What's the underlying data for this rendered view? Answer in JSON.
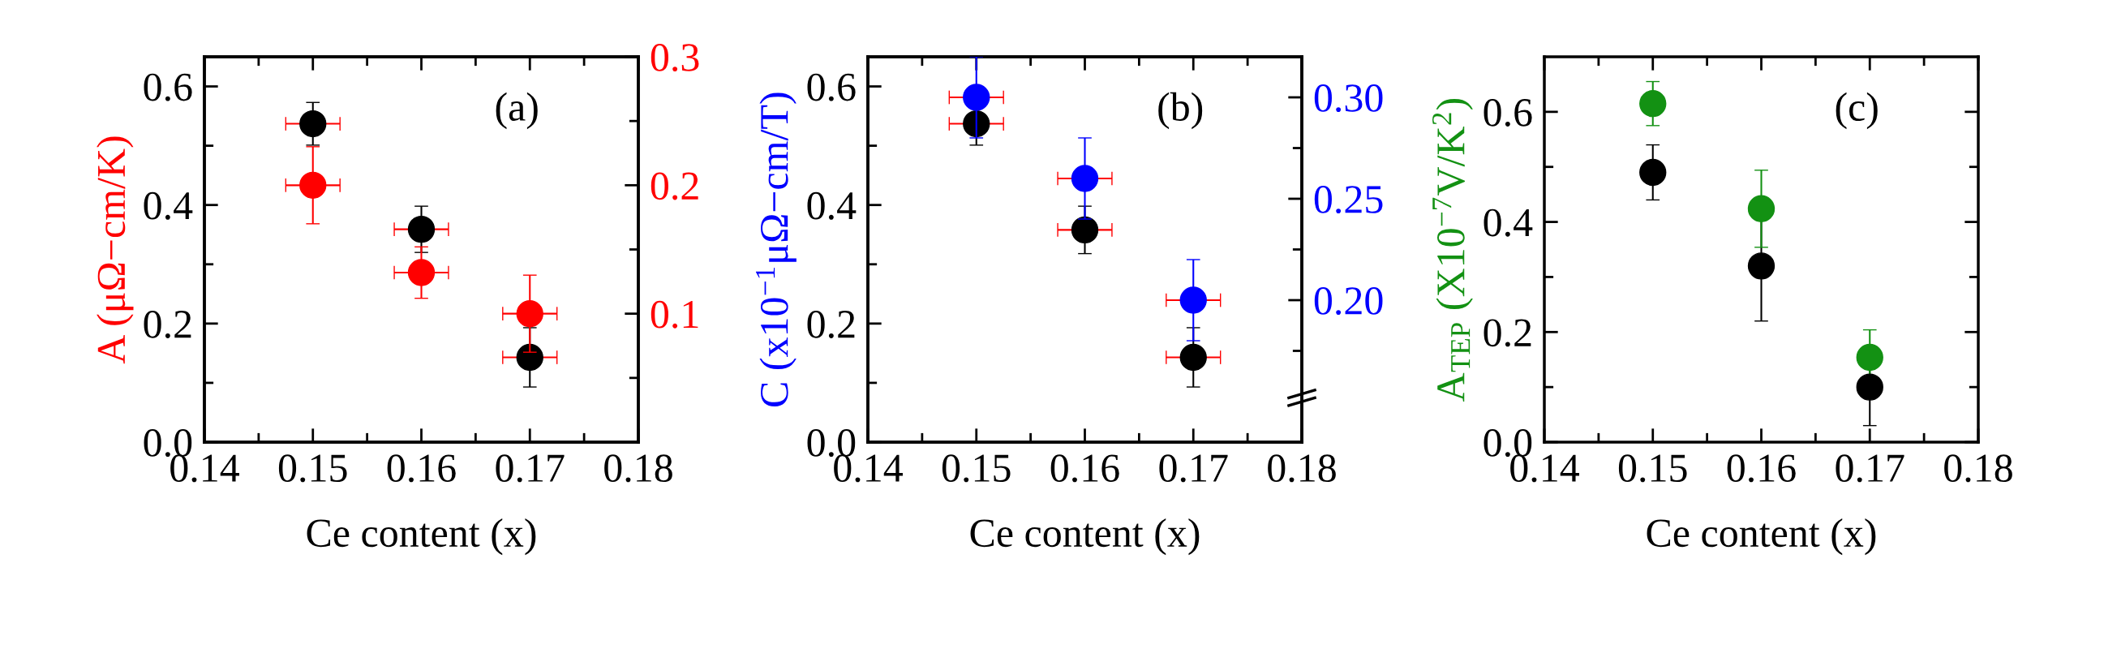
{
  "chart_data": [
    {
      "type": "scatter",
      "x": [
        0.15,
        0.16,
        0.17
      ],
      "marker": "circle",
      "xlabel": "Ce content (x)",
      "ylabel": "A (μΩ−cm/K)",
      "annotations": [
        "(a)"
      ],
      "xlim": [
        0.14,
        0.18
      ],
      "xticks": [
        0.14,
        {
          "value": 0.145,
          "label": null
        },
        0.15,
        {
          "value": 0.155,
          "label": null
        },
        0.16,
        {
          "value": 0.165,
          "label": null
        },
        0.17,
        {
          "value": 0.175,
          "label": null
        },
        0.18
      ],
      "ylim": [
        0,
        0.65
      ],
      "yticks": [
        {
          "value": 0,
          "label": "0.0"
        },
        {
          "value": 0.1,
          "label": null
        },
        0.2,
        {
          "value": 0.3,
          "label": null
        },
        0.4,
        {
          "value": 0.5,
          "label": null
        },
        0.6
      ],
      "y2lim": [
        0,
        0.3
      ],
      "y2ticks": [
        {
          "value": 0.05,
          "label": null
        },
        0.1,
        {
          "value": 0.15,
          "label": null
        },
        0.2,
        {
          "value": 0.25,
          "label": null
        },
        0.3
      ],
      "series": [
        {
          "color": "#000000",
          "values": [
            0.537,
            0.359,
            0.143
          ],
          "errors": [
            0.036,
            0.039,
            0.05
          ],
          "xerrors": [
            0.0025,
            0.0025,
            0.0025
          ]
        },
        {
          "color": "#ff0000",
          "axis": "y2",
          "values": [
            0.2,
            0.132,
            0.1
          ],
          "errors": [
            0.03,
            0.02,
            0.03
          ],
          "xerrors": [
            0.0025,
            0.0025,
            0.0025
          ]
        }
      ]
    },
    {
      "type": "scatter",
      "x": [
        0.15,
        0.16,
        0.17
      ],
      "marker": "circle",
      "xlabel": "Ce content (x)",
      "ylabel": "C (x10$^{−1}$μΩ−cm/T)",
      "annotations": [
        "(b)"
      ],
      "xlim": [
        0.14,
        0.18
      ],
      "xticks": [
        0.14,
        {
          "value": 0.145,
          "label": null
        },
        0.15,
        {
          "value": 0.155,
          "label": null
        },
        0.16,
        {
          "value": 0.165,
          "label": null
        },
        0.17,
        {
          "value": 0.175,
          "label": null
        },
        0.18
      ],
      "ylim": [
        0,
        0.65
      ],
      "yticks": [
        {
          "value": 0,
          "label": "0.0"
        },
        {
          "value": 0.1,
          "label": null
        },
        0.2,
        {
          "value": 0.3,
          "label": null
        },
        0.4,
        {
          "value": 0.5,
          "label": null
        },
        0.6
      ],
      "y2lim": [
        0.13,
        0.32
      ],
      "y2ticks": [
        {
          "value": 0.175,
          "label": null
        },
        {
          "value": 0.2,
          "label": "0.20"
        },
        {
          "value": 0.225,
          "label": null
        },
        0.25,
        {
          "value": 0.275,
          "label": null
        },
        {
          "value": 0.3,
          "label": "0.30"
        }
      ],
      "series": [
        {
          "color": "#000000",
          "values": [
            0.537,
            0.358,
            0.143
          ],
          "errors": [
            0.036,
            0.04,
            0.05
          ],
          "xerrors": [
            0.0025,
            0.0025,
            0.0025
          ]
        },
        {
          "color": "#0000ff",
          "axis": "y2",
          "values": [
            0.3,
            0.26,
            0.2
          ],
          "errors": [
            0.02,
            0.02,
            0.02
          ],
          "xerrors": [
            0.0025,
            0.0025,
            0.0025
          ]
        }
      ]
    },
    {
      "type": "scatter",
      "x": [
        0.15,
        0.16,
        0.17
      ],
      "marker": "circle",
      "xlabel": "Ce content (x)",
      "ylabel": "A$_{TEP}$ (X10$^{−7}$V/K$^{2}$)",
      "annotations": [
        "(c)"
      ],
      "xlim": [
        0.14,
        0.18
      ],
      "xticks": [
        0.14,
        {
          "value": 0.145,
          "label": null
        },
        0.15,
        {
          "value": 0.155,
          "label": null
        },
        0.16,
        {
          "value": 0.165,
          "label": null
        },
        0.17,
        {
          "value": 0.175,
          "label": null
        },
        0.18
      ],
      "ylim": [
        0,
        0.7
      ],
      "yticks": [
        {
          "value": 0,
          "label": "0.0"
        },
        {
          "value": 0.1,
          "label": null
        },
        0.2,
        {
          "value": 0.3,
          "label": null
        },
        0.4,
        {
          "value": 0.5,
          "label": null
        },
        0.6
      ],
      "series": [
        {
          "color": "#000000",
          "values": [
            0.49,
            0.32,
            0.1
          ],
          "errors": [
            0.05,
            0.1,
            0.07
          ]
        },
        {
          "color": "#139113",
          "values": [
            0.615,
            0.424,
            0.154
          ],
          "errors": [
            0.04,
            0.07,
            0.05
          ]
        }
      ]
    }
  ]
}
